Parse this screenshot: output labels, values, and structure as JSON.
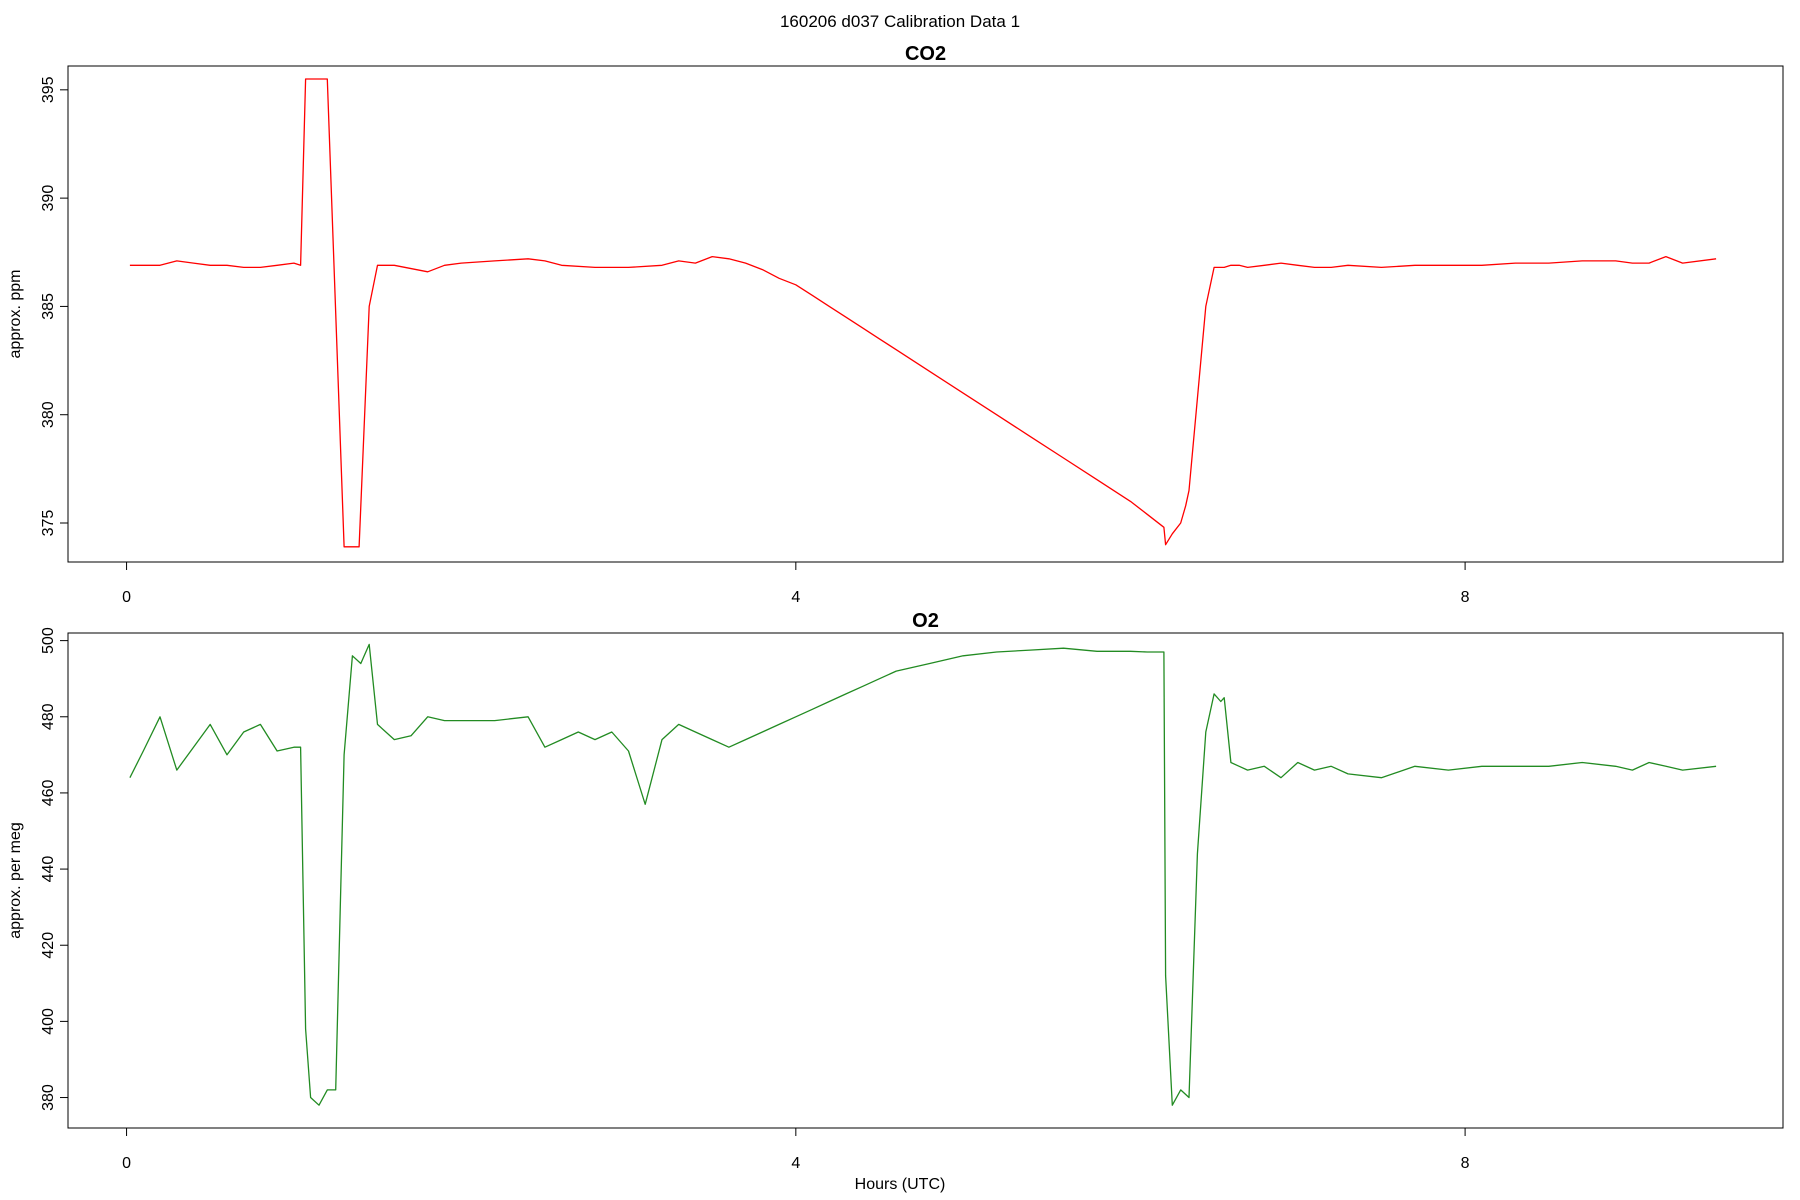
{
  "suptitle": "160206   d037   Calibration Data 1",
  "xlabel": "Hours (UTC)",
  "chart_data": [
    {
      "type": "line",
      "title": "CO2",
      "xlabel": "",
      "ylabel": "approx. ppm",
      "xlim": [
        -0.35,
        9.9
      ],
      "ylim": [
        373.2,
        396.1
      ],
      "xticks": [
        0,
        4,
        8
      ],
      "yticks": [
        375,
        380,
        385,
        390,
        395
      ],
      "grid": false,
      "series": [
        {
          "color": "#ff0000",
          "x": [
            0.02,
            0.2,
            0.3,
            0.4,
            0.5,
            0.6,
            0.7,
            0.8,
            0.9,
            1.0,
            1.04,
            1.07,
            1.2,
            1.3,
            1.35,
            1.39,
            1.45,
            1.5,
            1.52,
            1.6,
            1.8,
            1.9,
            2.0,
            2.2,
            2.4,
            2.5,
            2.6,
            2.8,
            3.0,
            3.2,
            3.3,
            3.4,
            3.5,
            3.6,
            3.7,
            3.8,
            3.9,
            4.0,
            4.1,
            4.2,
            4.3,
            4.4,
            4.5,
            4.6,
            4.8,
            5.0,
            5.2,
            5.4,
            5.6,
            5.8,
            6.0,
            6.1,
            6.2,
            6.21,
            6.25,
            6.3,
            6.33,
            6.35,
            6.45,
            6.5,
            6.54,
            6.56,
            6.6,
            6.65,
            6.7,
            6.8,
            6.9,
            7.0,
            7.1,
            7.2,
            7.3,
            7.5,
            7.7,
            7.9,
            8.1,
            8.3,
            8.5,
            8.7,
            8.9,
            9.0,
            9.1,
            9.2,
            9.3,
            9.5
          ],
          "y": [
            386.9,
            386.9,
            387.1,
            387.0,
            386.9,
            386.9,
            386.8,
            386.8,
            386.9,
            387.0,
            386.9,
            395.5,
            395.5,
            373.9,
            373.9,
            373.9,
            385.0,
            386.9,
            386.9,
            386.9,
            386.6,
            386.9,
            387.0,
            387.1,
            387.2,
            387.1,
            386.9,
            386.8,
            386.8,
            386.9,
            387.1,
            387.0,
            387.3,
            387.2,
            387.0,
            386.7,
            386.3,
            386.0,
            385.5,
            385.0,
            384.5,
            384.0,
            383.5,
            383.0,
            382.0,
            381.0,
            380.0,
            379.0,
            378.0,
            377.0,
            376.0,
            375.4,
            374.8,
            374.0,
            374.5,
            375.0,
            375.8,
            376.5,
            385.0,
            386.8,
            386.8,
            386.8,
            386.9,
            386.9,
            386.8,
            386.9,
            387.0,
            386.9,
            386.8,
            386.8,
            386.9,
            386.8,
            386.9,
            386.9,
            386.9,
            387.0,
            387.0,
            387.1,
            387.1,
            387.0,
            387.0,
            387.3,
            387.0,
            387.2
          ]
        }
      ]
    },
    {
      "type": "line",
      "title": "O2",
      "xlabel": "Hours (UTC)",
      "ylabel": "approx. per meg",
      "xlim": [
        -0.35,
        9.9
      ],
      "ylim": [
        372,
        502
      ],
      "xticks": [
        0,
        4,
        8
      ],
      "yticks": [
        380,
        400,
        420,
        440,
        460,
        480,
        500
      ],
      "grid": false,
      "series": [
        {
          "color": "#228b22",
          "x": [
            0.02,
            0.1,
            0.2,
            0.3,
            0.4,
            0.5,
            0.6,
            0.7,
            0.8,
            0.9,
            1.0,
            1.04,
            1.07,
            1.1,
            1.15,
            1.2,
            1.25,
            1.3,
            1.35,
            1.4,
            1.45,
            1.5,
            1.6,
            1.7,
            1.8,
            1.9,
            2.0,
            2.2,
            2.4,
            2.5,
            2.6,
            2.7,
            2.8,
            2.9,
            3.0,
            3.1,
            3.2,
            3.3,
            3.4,
            3.5,
            3.6,
            3.7,
            3.8,
            3.9,
            4.0,
            4.1,
            4.2,
            4.3,
            4.4,
            4.5,
            4.6,
            4.8,
            5.0,
            5.2,
            5.4,
            5.6,
            5.8,
            6.0,
            6.1,
            6.2,
            6.21,
            6.25,
            6.3,
            6.35,
            6.4,
            6.45,
            6.5,
            6.54,
            6.56,
            6.6,
            6.65,
            6.7,
            6.8,
            6.9,
            7.0,
            7.1,
            7.2,
            7.3,
            7.5,
            7.7,
            7.9,
            8.1,
            8.3,
            8.5,
            8.7,
            8.9,
            9.0,
            9.1,
            9.2,
            9.3,
            9.5
          ],
          "y": [
            464.0,
            471.0,
            480.0,
            466.0,
            472.0,
            478.0,
            470.0,
            476.0,
            478.0,
            471.0,
            472.0,
            472.0,
            398.0,
            380.0,
            378.0,
            382.0,
            382.0,
            470.0,
            496.0,
            494.0,
            499.0,
            478.0,
            474.0,
            475.0,
            480.0,
            479.0,
            479.0,
            479.0,
            480.0,
            472.0,
            474.0,
            476.0,
            474.0,
            476.0,
            471.0,
            457.0,
            474.0,
            478.0,
            476.0,
            474.0,
            472.0,
            474.0,
            476.0,
            478.0,
            480.0,
            482.0,
            484.0,
            486.0,
            488.0,
            490.0,
            492.0,
            494.0,
            496.0,
            497.0,
            497.5,
            498.0,
            497.2,
            497.2,
            497.0,
            497.0,
            412.0,
            378.0,
            382.0,
            380.0,
            444.0,
            476.0,
            486.0,
            484.0,
            485.0,
            468.0,
            467.0,
            466.0,
            467.0,
            464.0,
            468.0,
            466.0,
            467.0,
            465.0,
            464.0,
            467.0,
            466.0,
            467.0,
            467.0,
            467.0,
            468.0,
            467.0,
            466.0,
            468.0,
            467.0,
            466.0,
            467.0
          ]
        }
      ]
    }
  ]
}
